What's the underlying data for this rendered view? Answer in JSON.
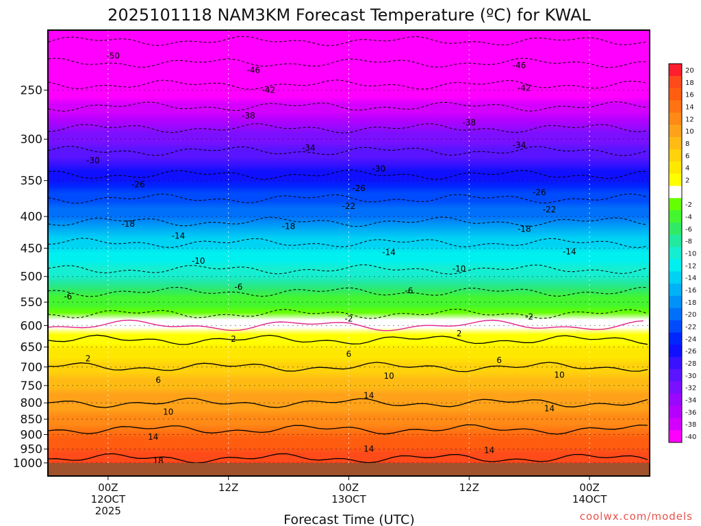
{
  "chart_data": {
    "type": "heatmap",
    "title": "2025101118 NAM3KM Forecast Temperature (ºC) for KWAL",
    "xlabel": "Forecast Time (UTC)",
    "ylabel": "",
    "credit": "coolwx.com/models",
    "y_log_pressure": true,
    "ylim": [
      1050,
      200
    ],
    "xlim": [
      -6,
      54
    ],
    "y_ticks": [
      250,
      300,
      350,
      400,
      450,
      500,
      550,
      600,
      650,
      700,
      750,
      800,
      850,
      900,
      950,
      1000
    ],
    "x_ticks": [
      {
        "hour": 0,
        "lines": [
          "00Z",
          "12OCT",
          "2025"
        ]
      },
      {
        "hour": 12,
        "lines": [
          "12Z"
        ]
      },
      {
        "hour": 24,
        "lines": [
          "00Z",
          "13OCT"
        ]
      },
      {
        "hour": 36,
        "lines": [
          "12Z"
        ]
      },
      {
        "hour": 48,
        "lines": [
          "00Z",
          "14OCT"
        ]
      }
    ],
    "ground_pressure": 1000,
    "colorbar": [
      {
        "label": "20",
        "color": "#ff1e2e"
      },
      {
        "label": "18",
        "color": "#ff4a1a"
      },
      {
        "label": "16",
        "color": "#ff5e10"
      },
      {
        "label": "14",
        "color": "#ff7312"
      },
      {
        "label": "12",
        "color": "#ff8a16"
      },
      {
        "label": "10",
        "color": "#ffa21a"
      },
      {
        "label": "8",
        "color": "#ffbb14"
      },
      {
        "label": "6",
        "color": "#ffd20c"
      },
      {
        "label": "4",
        "color": "#ffe800"
      },
      {
        "label": "2",
        "color": "#ffff00"
      },
      {
        "label": "",
        "color": "#ffffff"
      },
      {
        "label": "-2",
        "color": "#66ff00"
      },
      {
        "label": "-4",
        "color": "#44f630"
      },
      {
        "label": "-6",
        "color": "#30ea66"
      },
      {
        "label": "-8",
        "color": "#22e8a0"
      },
      {
        "label": "-10",
        "color": "#16eed2"
      },
      {
        "label": "-12",
        "color": "#00f0f0"
      },
      {
        "label": "-14",
        "color": "#00d2f4"
      },
      {
        "label": "-16",
        "color": "#00b2f6"
      },
      {
        "label": "-18",
        "color": "#0092f8"
      },
      {
        "label": "-20",
        "color": "#0070fa"
      },
      {
        "label": "-22",
        "color": "#004cfc"
      },
      {
        "label": "-24",
        "color": "#0026fe"
      },
      {
        "label": "-26",
        "color": "#1010ff"
      },
      {
        "label": "-28",
        "color": "#3a12ff"
      },
      {
        "label": "-30",
        "color": "#5a14ff"
      },
      {
        "label": "-32",
        "color": "#7a10ff"
      },
      {
        "label": "-34",
        "color": "#9a08ff"
      },
      {
        "label": "-36",
        "color": "#b600ff"
      },
      {
        "label": "-38",
        "color": "#d400ff"
      },
      {
        "label": "-40",
        "color": "#ff00ff"
      }
    ],
    "freezing_level_color": "#e0208a",
    "profile": [
      {
        "p": 1000,
        "t": 19
      },
      {
        "p": 950,
        "t": 16
      },
      {
        "p": 900,
        "t": 15
      },
      {
        "p": 850,
        "t": 12
      },
      {
        "p": 800,
        "t": 10
      },
      {
        "p": 750,
        "t": 8
      },
      {
        "p": 700,
        "t": 6
      },
      {
        "p": 650,
        "t": 3
      },
      {
        "p": 600,
        "t": 0
      },
      {
        "p": 550,
        "t": -4
      },
      {
        "p": 500,
        "t": -9
      },
      {
        "p": 450,
        "t": -13
      },
      {
        "p": 400,
        "t": -19
      },
      {
        "p": 350,
        "t": -25
      },
      {
        "p": 300,
        "t": -32
      },
      {
        "p": 250,
        "t": -41
      },
      {
        "p": 200,
        "t": -52
      }
    ],
    "contour_labels": [
      {
        "text": "-50",
        "hour": 0.5,
        "p": 220
      },
      {
        "text": "-46",
        "hour": 14.5,
        "p": 232
      },
      {
        "text": "-46",
        "hour": 41,
        "p": 228
      },
      {
        "text": "-42",
        "hour": 16,
        "p": 250
      },
      {
        "text": "-42",
        "hour": 41.5,
        "p": 248
      },
      {
        "text": "-38",
        "hour": 14,
        "p": 275
      },
      {
        "text": "-38",
        "hour": 36,
        "p": 282
      },
      {
        "text": "-34",
        "hour": 20,
        "p": 310
      },
      {
        "text": "-34",
        "hour": 41,
        "p": 307
      },
      {
        "text": "-30",
        "hour": -1.5,
        "p": 325
      },
      {
        "text": "-30",
        "hour": 27,
        "p": 335
      },
      {
        "text": "-26",
        "hour": 3,
        "p": 355
      },
      {
        "text": "-26",
        "hour": 25,
        "p": 360
      },
      {
        "text": "-26",
        "hour": 43,
        "p": 366
      },
      {
        "text": "-22",
        "hour": 24,
        "p": 385
      },
      {
        "text": "-22",
        "hour": 44,
        "p": 390
      },
      {
        "text": "-18",
        "hour": 2,
        "p": 411
      },
      {
        "text": "-18",
        "hour": 18,
        "p": 415
      },
      {
        "text": "-18",
        "hour": 41.5,
        "p": 419
      },
      {
        "text": "-14",
        "hour": 7,
        "p": 430
      },
      {
        "text": "-14",
        "hour": 28,
        "p": 457
      },
      {
        "text": "-14",
        "hour": 46,
        "p": 456
      },
      {
        "text": "-10",
        "hour": 9,
        "p": 472
      },
      {
        "text": "-10",
        "hour": 35,
        "p": 486
      },
      {
        "text": "-6",
        "hour": 13,
        "p": 520
      },
      {
        "text": "-6",
        "hour": -4,
        "p": 539
      },
      {
        "text": "-6",
        "hour": 30,
        "p": 527
      },
      {
        "text": "-2",
        "hour": 24,
        "p": 585
      },
      {
        "text": "-2",
        "hour": 42,
        "p": 581
      },
      {
        "text": "2",
        "hour": 12.5,
        "p": 631
      },
      {
        "text": "2",
        "hour": 35,
        "p": 618
      },
      {
        "text": "2",
        "hour": -2,
        "p": 678
      },
      {
        "text": "6",
        "hour": 24,
        "p": 667
      },
      {
        "text": "6",
        "hour": 39,
        "p": 683
      },
      {
        "text": "6",
        "hour": 5,
        "p": 735
      },
      {
        "text": "10",
        "hour": 28,
        "p": 724
      },
      {
        "text": "10",
        "hour": 45,
        "p": 721
      },
      {
        "text": "10",
        "hour": 6,
        "p": 828
      },
      {
        "text": "14",
        "hour": 26,
        "p": 778
      },
      {
        "text": "14",
        "hour": 44,
        "p": 817
      },
      {
        "text": "14",
        "hour": 4.5,
        "p": 908
      },
      {
        "text": "14",
        "hour": 26,
        "p": 950
      },
      {
        "text": "14",
        "hour": 38,
        "p": 954
      },
      {
        "text": "18",
        "hour": 5,
        "p": 993
      }
    ]
  }
}
